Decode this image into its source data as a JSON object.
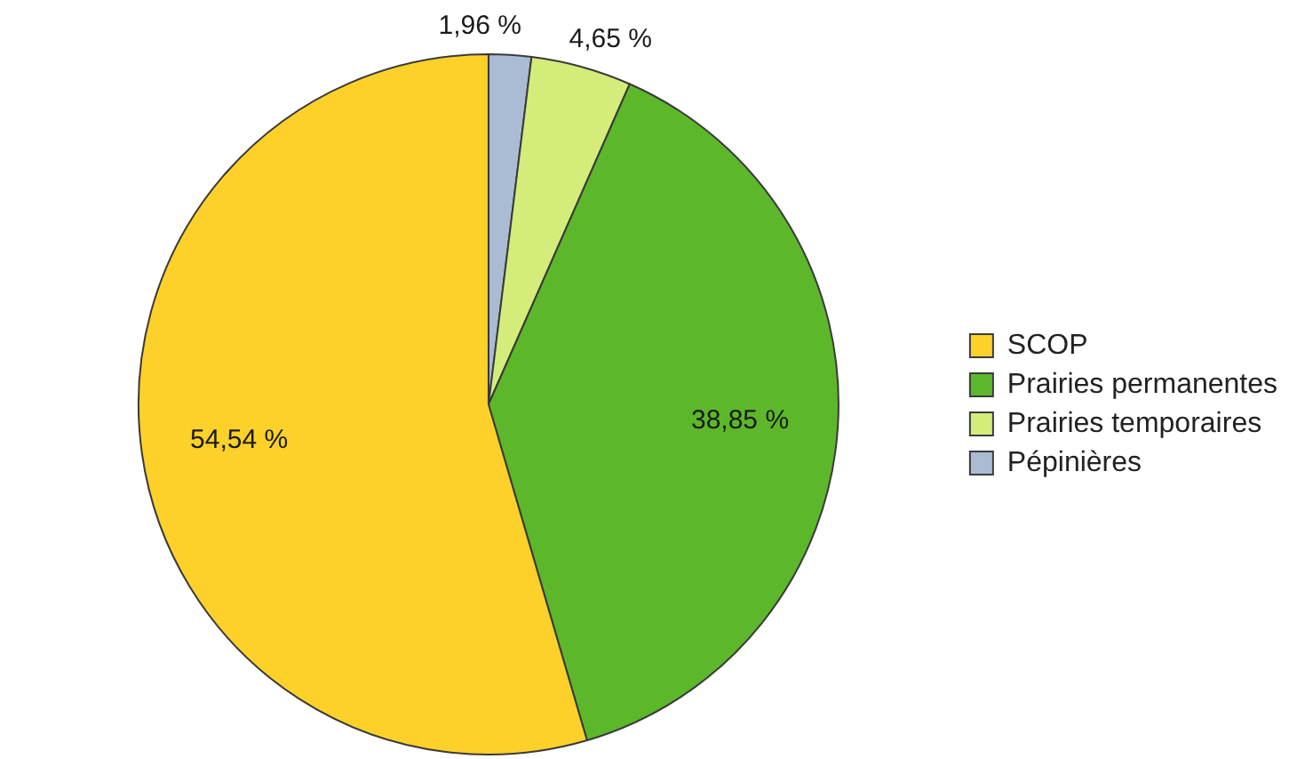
{
  "chart_data": {
    "type": "pie",
    "categories": [
      "Pépinières",
      "Prairies temporaires",
      "Prairies permanentes",
      "SCOP"
    ],
    "values": [
      1.96,
      4.65,
      38.85,
      54.54
    ],
    "colors": [
      "#a9bcd3",
      "#d4ec7a",
      "#5cb82a",
      "#fdd12a"
    ],
    "value_labels": [
      "1,96 %",
      "4,65 %",
      "38,85 %",
      "54,54 %"
    ],
    "legend": "right"
  }
}
